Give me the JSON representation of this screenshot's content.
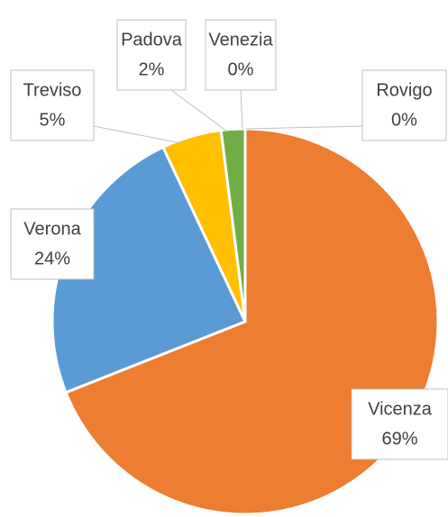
{
  "chart_data": {
    "type": "pie",
    "categories": [
      "Vicenza",
      "Verona",
      "Treviso",
      "Padova",
      "Venezia",
      "Rovigo"
    ],
    "values": [
      69,
      24,
      5,
      2,
      0,
      0
    ],
    "value_labels": [
      "69%",
      "24%",
      "5%",
      "2%",
      "0%",
      "0%"
    ],
    "colors": [
      "#ed7d31",
      "#5b9bd5",
      "#ffc000",
      "#70ad47",
      "#264478",
      "#9e480e"
    ]
  }
}
